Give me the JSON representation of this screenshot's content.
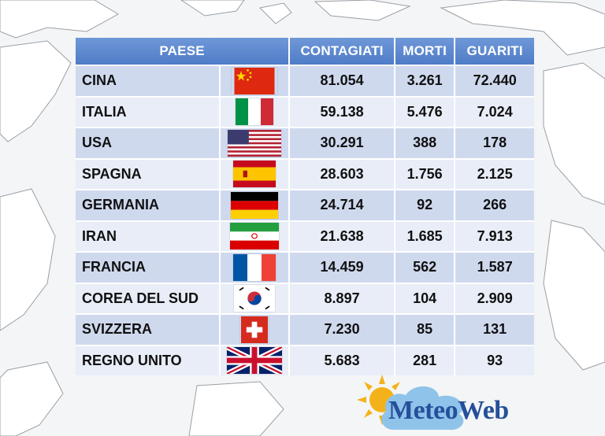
{
  "header": {
    "country": "PAESE",
    "infected": "CONTAGIATI",
    "deaths": "MORTI",
    "recovered": "GUARITI"
  },
  "rows": [
    {
      "country": "CINA",
      "flag": "china-flag-icon",
      "infected": "81.054",
      "deaths": "3.261",
      "recovered": "72.440"
    },
    {
      "country": "ITALIA",
      "flag": "italy-flag-icon",
      "infected": "59.138",
      "deaths": "5.476",
      "recovered": "7.024"
    },
    {
      "country": "USA",
      "flag": "usa-flag-icon",
      "infected": "30.291",
      "deaths": "388",
      "recovered": "178"
    },
    {
      "country": "SPAGNA",
      "flag": "spain-flag-icon",
      "infected": "28.603",
      "deaths": "1.756",
      "recovered": "2.125"
    },
    {
      "country": "GERMANIA",
      "flag": "germany-flag-icon",
      "infected": "24.714",
      "deaths": "92",
      "recovered": "266"
    },
    {
      "country": "IRAN",
      "flag": "iran-flag-icon",
      "infected": "21.638",
      "deaths": "1.685",
      "recovered": "7.913"
    },
    {
      "country": "FRANCIA",
      "flag": "france-flag-icon",
      "infected": "14.459",
      "deaths": "562",
      "recovered": "1.587"
    },
    {
      "country": "COREA DEL SUD",
      "flag": "south-korea-flag-icon",
      "infected": "8.897",
      "deaths": "104",
      "recovered": "2.909"
    },
    {
      "country": "SVIZZERA",
      "flag": "switzerland-flag-icon",
      "infected": "7.230",
      "deaths": "85",
      "recovered": "131"
    },
    {
      "country": "REGNO UNITO",
      "flag": "uk-flag-icon",
      "infected": "5.683",
      "deaths": "281",
      "recovered": "93"
    }
  ],
  "logo": {
    "text": "MeteoWeb"
  },
  "colors": {
    "header_blue": "#5a86cf",
    "row_dark": "#cfd9ee",
    "row_light": "#e8edf7",
    "logo_blue": "#24509b"
  }
}
